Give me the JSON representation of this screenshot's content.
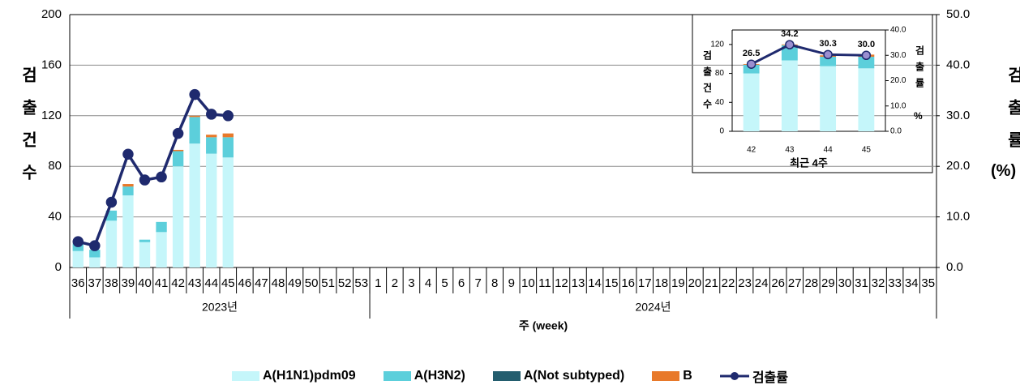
{
  "chart_data": [
    {
      "type": "bar",
      "categories": [
        "36",
        "37",
        "38",
        "39",
        "40",
        "41",
        "42",
        "43",
        "44",
        "45",
        "46",
        "47",
        "48",
        "49",
        "50",
        "51",
        "52",
        "53",
        "1",
        "2",
        "3",
        "4",
        "5",
        "6",
        "7",
        "8",
        "9",
        "10",
        "11",
        "12",
        "13",
        "14",
        "15",
        "16",
        "17",
        "18",
        "19",
        "20",
        "21",
        "22",
        "23",
        "24",
        "26",
        "27",
        "28",
        "29",
        "30",
        "31",
        "32",
        "33",
        "34",
        "35"
      ],
      "groups": [
        {
          "label": "2023년",
          "count": 18
        },
        {
          "label": "2024년",
          "count": 34
        }
      ],
      "xlabel": "주 (week)",
      "ylabel": "검출건수",
      "y2label": "검출률",
      "y2unit": "(%)",
      "ylim": [
        0,
        200
      ],
      "yticks": [
        0,
        40,
        80,
        120,
        160,
        200
      ],
      "y2lim": [
        0,
        50
      ],
      "y2ticks": [
        {
          "value": 0,
          "label": "0.0"
        },
        {
          "value": 10,
          "label": "10.0"
        },
        {
          "value": 20,
          "label": "20.0"
        },
        {
          "value": 30,
          "label": "30.0"
        },
        {
          "value": 40,
          "label": "40.0"
        },
        {
          "value": 50,
          "label": "50.0"
        }
      ],
      "grid": true,
      "legend": "bottom",
      "series": [
        {
          "name": "A(H1N1)pdm09",
          "color": "#c5f6fa",
          "values": [
            13,
            8,
            37,
            57,
            20,
            28,
            80,
            98,
            90,
            87,
            null,
            null,
            null,
            null,
            null,
            null,
            null,
            null,
            null,
            null,
            null,
            null,
            null,
            null,
            null,
            null,
            null,
            null,
            null,
            null,
            null,
            null,
            null,
            null,
            null,
            null,
            null,
            null,
            null,
            null,
            null,
            null,
            null,
            null,
            null,
            null,
            null,
            null,
            null,
            null,
            null,
            null
          ]
        },
        {
          "name": "A(H3N2)",
          "color": "#5ccfdb",
          "values": [
            6,
            6,
            8,
            7,
            2,
            8,
            12,
            21,
            13,
            16,
            null,
            null,
            null,
            null,
            null,
            null,
            null,
            null,
            null,
            null,
            null,
            null,
            null,
            null,
            null,
            null,
            null,
            null,
            null,
            null,
            null,
            null,
            null,
            null,
            null,
            null,
            null,
            null,
            null,
            null,
            null,
            null,
            null,
            null,
            null,
            null,
            null,
            null,
            null,
            null,
            null,
            null
          ]
        },
        {
          "name": "A(Not subtyped)",
          "color": "#235d6e",
          "values": [
            0,
            0,
            0,
            0,
            0,
            0,
            0,
            0,
            0,
            0,
            null,
            null,
            null,
            null,
            null,
            null,
            null,
            null,
            null,
            null,
            null,
            null,
            null,
            null,
            null,
            null,
            null,
            null,
            null,
            null,
            null,
            null,
            null,
            null,
            null,
            null,
            null,
            null,
            null,
            null,
            null,
            null,
            null,
            null,
            null,
            null,
            null,
            null,
            null,
            null,
            null,
            null
          ]
        },
        {
          "name": "B",
          "color": "#e8792a",
          "values": [
            0,
            0,
            0,
            2,
            0,
            0,
            1,
            1,
            2,
            3,
            null,
            null,
            null,
            null,
            null,
            null,
            null,
            null,
            null,
            null,
            null,
            null,
            null,
            null,
            null,
            null,
            null,
            null,
            null,
            null,
            null,
            null,
            null,
            null,
            null,
            null,
            null,
            null,
            null,
            null,
            null,
            null,
            null,
            null,
            null,
            null,
            null,
            null,
            null,
            null,
            null,
            null
          ]
        },
        {
          "name": "검출률",
          "color": "#1f2a6e",
          "axis": "y2",
          "values": [
            5.1,
            4.3,
            12.9,
            22.4,
            17.3,
            17.9,
            26.5,
            34.2,
            30.3,
            30.0,
            null,
            null,
            null,
            null,
            null,
            null,
            null,
            null,
            null,
            null,
            null,
            null,
            null,
            null,
            null,
            null,
            null,
            null,
            null,
            null,
            null,
            null,
            null,
            null,
            null,
            null,
            null,
            null,
            null,
            null,
            null,
            null,
            null,
            null,
            null,
            null,
            null,
            null,
            null,
            null,
            null,
            null
          ]
        }
      ]
    },
    {
      "type": "bar",
      "categories": [
        "42",
        "43",
        "44",
        "45"
      ],
      "xlabel": "최근 4주",
      "ylabel": "검출건수",
      "y2label": "검출률",
      "y2unit": "%",
      "ylim": [
        0,
        140
      ],
      "yticks": [
        0,
        40,
        80,
        120
      ],
      "y2lim": [
        0,
        40
      ],
      "y2ticks": [
        {
          "value": 0,
          "label": "0.0"
        },
        {
          "value": 10,
          "label": "10.0"
        },
        {
          "value": 20,
          "label": "20.0"
        },
        {
          "value": 30,
          "label": "30.0"
        },
        {
          "value": 40,
          "label": "40.0"
        }
      ],
      "grid": false,
      "series": [
        {
          "name": "A(H1N1)pdm09",
          "color": "#c5f6fa",
          "values": [
            80,
            98,
            90,
            87
          ]
        },
        {
          "name": "A(H3N2)",
          "color": "#5ccfdb",
          "values": [
            12,
            21,
            13,
            16
          ]
        },
        {
          "name": "A(Not subtyped)",
          "color": "#235d6e",
          "values": [
            0,
            0,
            0,
            0
          ]
        },
        {
          "name": "B",
          "color": "#e8792a",
          "values": [
            1,
            1,
            2,
            3
          ]
        },
        {
          "name": "검출률",
          "color": "#1f2a6e",
          "axis": "y2",
          "values": [
            26.5,
            34.2,
            30.3,
            30.0
          ],
          "value_labels": [
            "26.5",
            "34.2",
            "30.3",
            "30.0"
          ]
        }
      ]
    }
  ]
}
